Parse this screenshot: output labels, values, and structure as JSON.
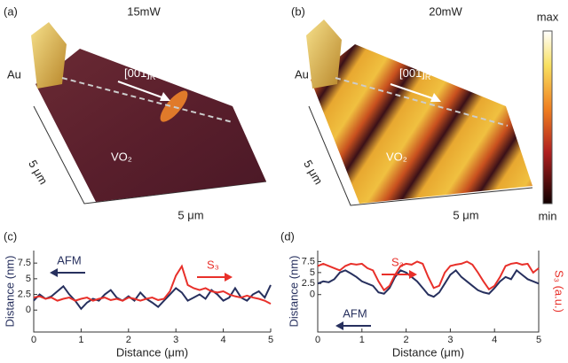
{
  "images": [
    {
      "label": "(a)",
      "power": "15mW",
      "electrode": "Au",
      "direction": "[001]",
      "direction_sub": "R",
      "material": "VO₂",
      "scale_y": "5 μm",
      "scale_x": "5 μm"
    },
    {
      "label": "(b)",
      "power": "20mW",
      "electrode": "Au",
      "direction": "[001]",
      "direction_sub": "R",
      "material": "VO₂",
      "scale_y": "5 μm",
      "scale_x": "5 μm"
    }
  ],
  "colorbar": {
    "max": "max",
    "min": "min"
  },
  "chart_data": [
    {
      "type": "line",
      "label": "(c)",
      "xlabel": "Distance (μm)",
      "ylabel": "Distance (nm)",
      "xlim": [
        0,
        5
      ],
      "xticks": [
        0,
        1,
        2,
        3,
        4,
        5
      ],
      "ylim": [
        -3.5,
        9.5
      ],
      "yticks": [
        0,
        2.5,
        5,
        7.5
      ],
      "annotations": [
        "AFM",
        "S₃"
      ],
      "x": [
        0,
        0.125,
        0.25,
        0.375,
        0.5,
        0.625,
        0.75,
        0.875,
        1,
        1.125,
        1.25,
        1.375,
        1.5,
        1.625,
        1.75,
        1.875,
        2,
        2.125,
        2.25,
        2.375,
        2.5,
        2.625,
        2.75,
        2.875,
        3,
        3.125,
        3.25,
        3.375,
        3.5,
        3.625,
        3.75,
        3.875,
        4,
        4.125,
        4.25,
        4.375,
        4.5,
        4.625,
        4.75,
        4.875,
        5
      ],
      "series": [
        {
          "name": "AFM",
          "color": "#27305e",
          "values": [
            1.5,
            2.5,
            1.8,
            2.2,
            3,
            3.8,
            2.5,
            1.5,
            0.2,
            1.2,
            1.8,
            1.5,
            2.5,
            3.2,
            2,
            1.5,
            2.2,
            1.5,
            2.8,
            1.8,
            1.2,
            0.5,
            1.5,
            2.5,
            3.5,
            2.8,
            1.5,
            2,
            2.5,
            1.8,
            3.2,
            2.5,
            1.5,
            2,
            3.5,
            2,
            1.5,
            2.5,
            3,
            2,
            4
          ]
        },
        {
          "name": "S₃",
          "color": "#e8302a",
          "values": [
            2,
            2.2,
            1.8,
            2,
            1.5,
            1.8,
            2,
            1.5,
            1.8,
            2,
            1.5,
            1.8,
            2,
            1.6,
            1.8,
            1.5,
            2,
            1.8,
            1.5,
            1.8,
            2,
            1.6,
            1.8,
            3,
            5.5,
            7,
            4,
            3.5,
            3.2,
            3.5,
            3,
            2.8,
            3,
            2.5,
            2.2,
            2,
            2.3,
            2,
            1.8,
            1.5,
            1
          ]
        }
      ]
    },
    {
      "type": "line",
      "label": "(d)",
      "xlabel": "Distance (μm)",
      "ylabel": "Distance (nm)",
      "y2label": "S₃ (a.u.)",
      "xlim": [
        0,
        5
      ],
      "xticks": [
        0,
        1,
        2,
        3,
        4,
        5
      ],
      "ylim": [
        -8.5,
        10
      ],
      "yticks": [
        0,
        2.5,
        5,
        7.5
      ],
      "annotations": [
        "AFM",
        "S₃"
      ],
      "x": [
        0,
        0.125,
        0.25,
        0.375,
        0.5,
        0.625,
        0.75,
        0.875,
        1,
        1.125,
        1.25,
        1.375,
        1.5,
        1.625,
        1.75,
        1.875,
        2,
        2.125,
        2.25,
        2.375,
        2.5,
        2.625,
        2.75,
        2.875,
        3,
        3.125,
        3.25,
        3.375,
        3.5,
        3.625,
        3.75,
        3.875,
        4,
        4.125,
        4.25,
        4.375,
        4.5,
        4.625,
        4.75,
        4.875,
        5
      ],
      "series": [
        {
          "name": "AFM",
          "color": "#27305e",
          "values": [
            2.5,
            3,
            2.8,
            3.5,
            5,
            5.5,
            4.8,
            4,
            3,
            2.5,
            2,
            0.5,
            0.2,
            1.5,
            4,
            5.5,
            5,
            4,
            3,
            1.5,
            0,
            -0.5,
            0.5,
            2.5,
            4.5,
            5.5,
            4,
            3,
            2,
            1,
            0.5,
            0.2,
            1.5,
            3,
            4,
            3.5,
            5.5,
            4.5,
            3.5,
            3,
            2.5
          ]
        },
        {
          "name": "S₃",
          "color": "#e8302a",
          "values": [
            6.5,
            7,
            6.5,
            6,
            5.5,
            6.5,
            7,
            6.8,
            7,
            6,
            5.5,
            3,
            1,
            2,
            4.5,
            6.5,
            7,
            6.8,
            7.5,
            7,
            4,
            1.5,
            2,
            5,
            6.5,
            6.8,
            7,
            7.5,
            6.8,
            5,
            3,
            1.2,
            2,
            4,
            6.5,
            7,
            7.2,
            6.8,
            7,
            5,
            6
          ]
        }
      ]
    }
  ]
}
